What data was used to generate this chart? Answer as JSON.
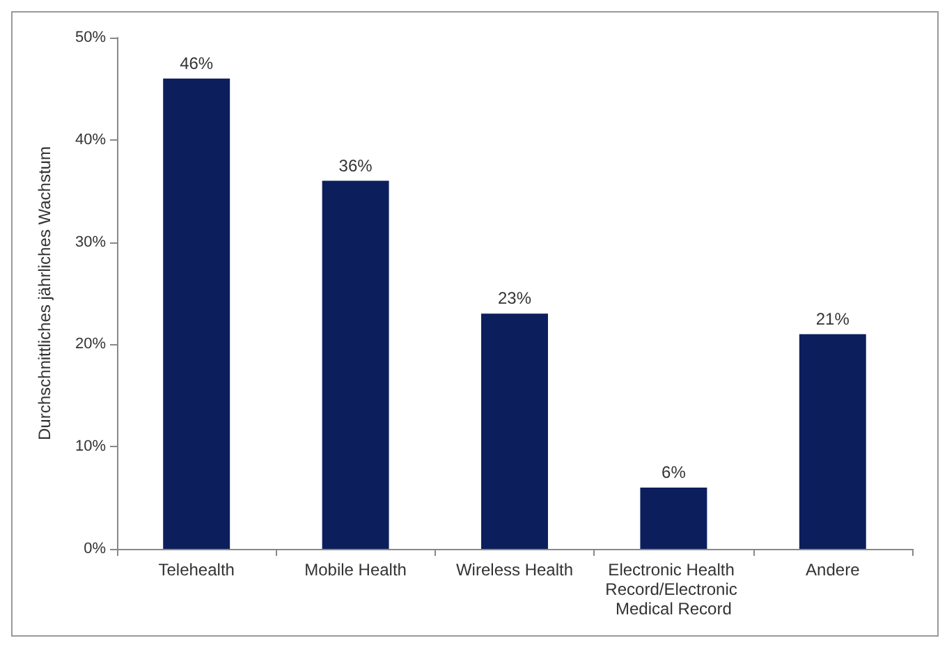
{
  "chart_data": {
    "type": "bar",
    "ylabel": "Durchschnittliches jährliches Wachstum",
    "categories": [
      "Telehealth",
      "Mobile Health",
      "Wireless Health",
      "Electronic Health Record/Electronic Medical Record",
      "Andere"
    ],
    "values": [
      46,
      36,
      23,
      6,
      21
    ],
    "value_labels": [
      "46%",
      "36%",
      "23%",
      "6%",
      "21%"
    ],
    "color": "#0c1f5c",
    "ylim": [
      0,
      50
    ],
    "yticks": [
      {
        "value": 0,
        "label": "0%"
      },
      {
        "value": 10,
        "label": "10%"
      },
      {
        "value": 20,
        "label": "20%"
      },
      {
        "value": 30,
        "label": "30%"
      },
      {
        "value": 40,
        "label": "40%"
      },
      {
        "value": 50,
        "label": "50%"
      }
    ],
    "grid": false
  }
}
